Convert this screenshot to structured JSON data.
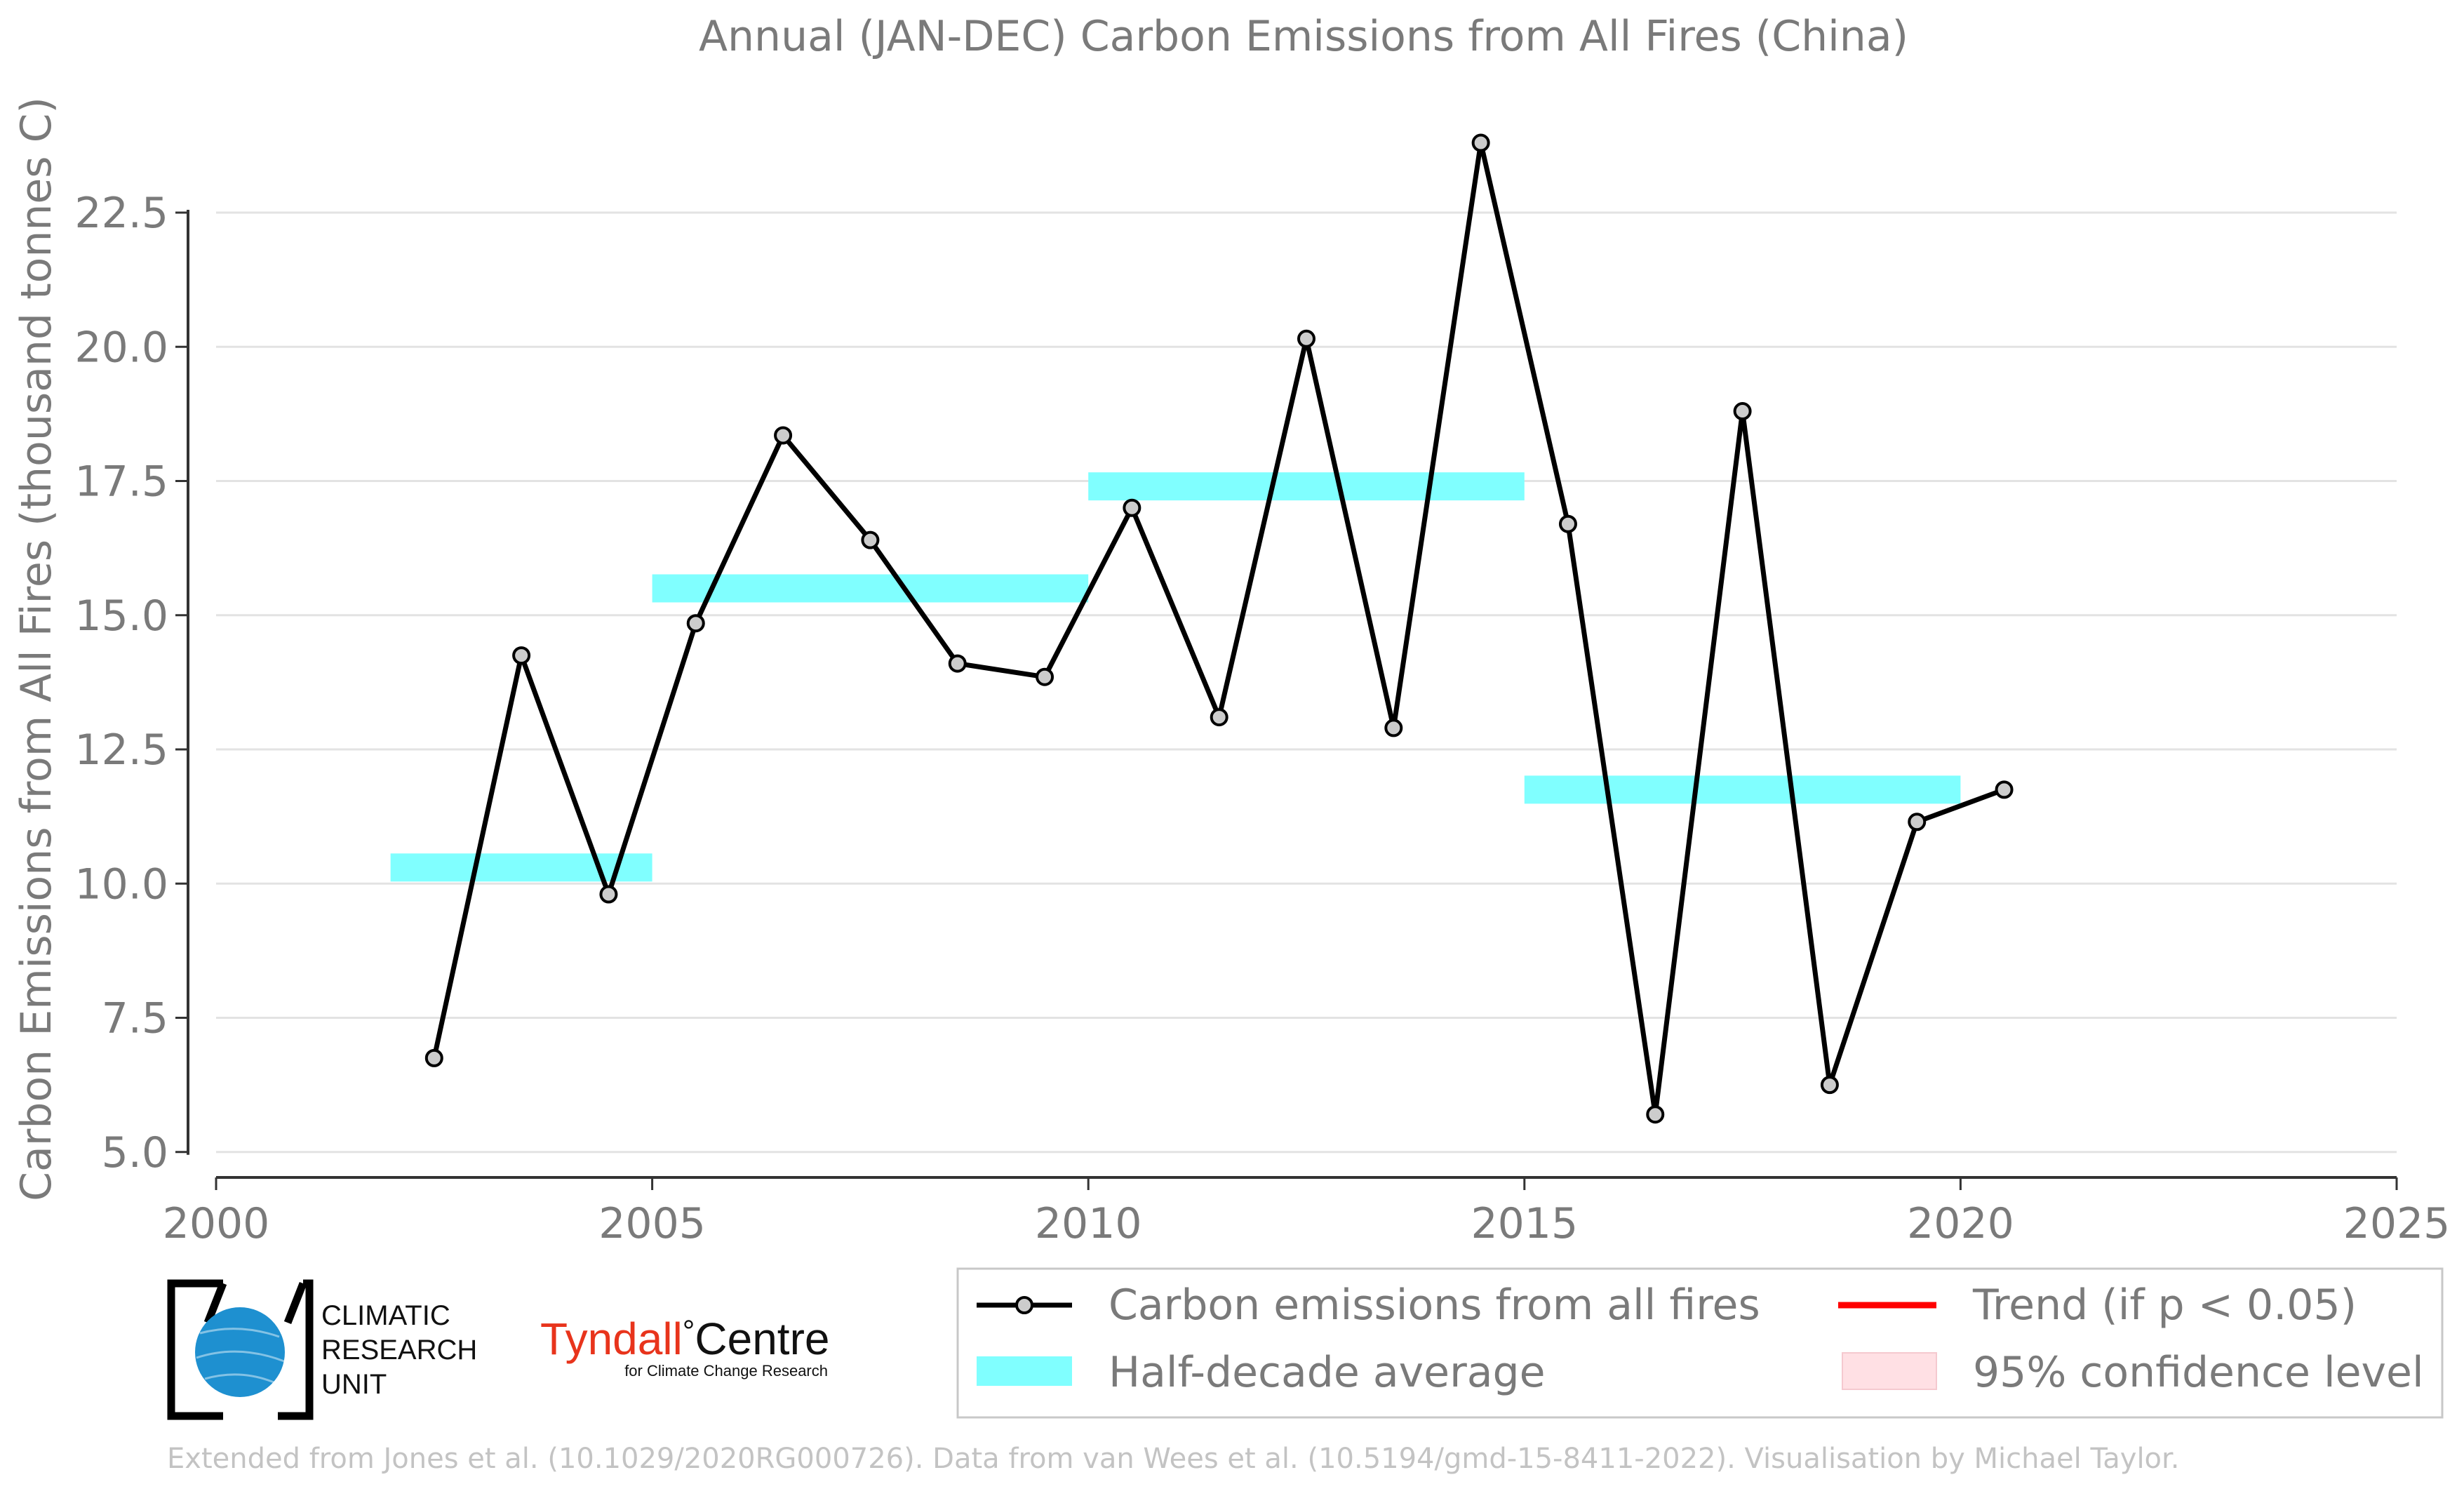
{
  "chart_data": {
    "type": "line",
    "title": "Annual (JAN-DEC) Carbon Emissions from All Fires (China)",
    "xlabel": "",
    "ylabel": "Carbon Emissions from All Fires (thousand tonnes C)",
    "xlim": [
      2000,
      2025
    ],
    "ylim": [
      4.5,
      24.5
    ],
    "x_ticks": [
      2000,
      2005,
      2010,
      2015,
      2020,
      2025
    ],
    "x_tick_labels": [
      "2000",
      "2005",
      "2010",
      "2015",
      "2020",
      "2025"
    ],
    "y_ticks": [
      5.0,
      7.5,
      10.0,
      12.5,
      15.0,
      17.5,
      20.0,
      22.5
    ],
    "y_tick_labels": [
      "5.0",
      "7.5",
      "10.0",
      "12.5",
      "15.0",
      "17.5",
      "20.0",
      "22.5"
    ],
    "grid": "horizontal",
    "series": [
      {
        "name": "Carbon emissions from all fires",
        "color": "#000000",
        "marker_fill": "#cccccc",
        "x": [
          2002.5,
          2003.5,
          2004.5,
          2005.5,
          2006.5,
          2007.5,
          2008.5,
          2009.5,
          2010.5,
          2011.5,
          2012.5,
          2013.5,
          2014.5,
          2015.5,
          2016.5,
          2017.5,
          2018.5,
          2019.5,
          2020.5
        ],
        "values": [
          6.75,
          14.25,
          9.8,
          14.85,
          18.35,
          16.4,
          14.1,
          13.85,
          17.0,
          13.1,
          20.15,
          12.9,
          23.8,
          16.7,
          5.7,
          18.8,
          6.25,
          11.15,
          11.75
        ]
      }
    ],
    "half_decade_averages": [
      {
        "x_start": 2002,
        "x_end": 2005,
        "value": 10.3
      },
      {
        "x_start": 2005,
        "x_end": 2010,
        "value": 15.5
      },
      {
        "x_start": 2010,
        "x_end": 2015,
        "value": 17.4
      },
      {
        "x_start": 2015,
        "x_end": 2020,
        "value": 11.75
      }
    ],
    "half_decade_color": "#80ffff",
    "trend_color": "#ff0000",
    "ci_color": "#ffe0e4",
    "legend": {
      "placement": "bottom-right",
      "entries": [
        {
          "key": "series",
          "label": "Carbon emissions from all fires"
        },
        {
          "key": "trend",
          "label": "Trend (if p < 0.05)"
        },
        {
          "key": "half",
          "label": "Half-decade average"
        },
        {
          "key": "ci",
          "label": "95% confidence level"
        }
      ]
    }
  },
  "logos": {
    "cru_lines": [
      "CLIMATIC",
      "RESEARCH",
      "UNIT"
    ],
    "tyndall_name": "Tyndall",
    "tyndall_degree": "°",
    "tyndall_centre": "Centre",
    "tyndall_sub": "for Climate Change Research",
    "tyndall_color": "#e8341c",
    "cru_globe_color": "#1e90d0"
  },
  "footer": {
    "credit": "Extended from Jones et al. (10.1029/2020RG000726). Data from van Wees et al. (10.5194/gmd-15-8411-2022). Visualisation by Michael Taylor."
  }
}
